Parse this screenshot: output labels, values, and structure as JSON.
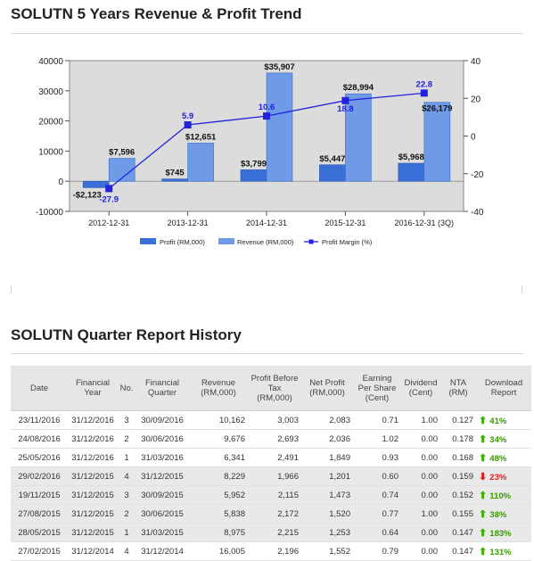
{
  "chart_section": {
    "title": "SOLUTN 5 Years Revenue & Profit Trend"
  },
  "chart_data": {
    "type": "bar",
    "categories": [
      "2012-12-31",
      "2013-12-31",
      "2014-12-31",
      "2015-12-31",
      "2016-12-31 (3Q)"
    ],
    "series": [
      {
        "name": "Profit (RM,000)",
        "type": "bar",
        "values": [
          -2123,
          745,
          3799,
          5447,
          5968
        ],
        "labels": [
          "-$2,123",
          "$745",
          "$3,799",
          "$5,447",
          "$5,968"
        ]
      },
      {
        "name": "Revenue (RM,000)",
        "type": "bar",
        "values": [
          7596,
          12651,
          35907,
          28994,
          26179
        ],
        "labels": [
          "$7,596",
          "$12,651",
          "$35,907",
          "$28,994",
          "$26,179"
        ]
      },
      {
        "name": "Profit Margin (%)",
        "type": "line",
        "axis": "right",
        "values": [
          -27.9,
          5.9,
          10.6,
          18.8,
          22.8
        ],
        "labels": [
          "-27.9",
          "5.9",
          "10.6",
          "18.8",
          "22.8"
        ]
      }
    ],
    "ylim": [
      -10000,
      40000
    ],
    "yticks": [
      "40000",
      "30000",
      "20000",
      "10000",
      "0",
      "-10000"
    ],
    "y2lim": [
      -40,
      40
    ],
    "y2ticks": [
      "40",
      "20",
      "0",
      "-20",
      "-40"
    ],
    "grid": false,
    "legend_position": "bottom",
    "colors": {
      "profit": "#3a6fd8",
      "revenue": "#6f9ae8",
      "margin_line": "#2222dd",
      "margin_text": "#2020dd",
      "plot_bg": "#dcdcdc"
    }
  },
  "report_section": {
    "title": "SOLUTN Quarter Report History",
    "columns": [
      "Date",
      "Financial Year",
      "No.",
      "Financial Quarter",
      "Revenue (RM,000)",
      "Profit Before Tax (RM,000)",
      "Net Profit (RM,000)",
      "Earning Per Share (Cent)",
      "Dividend (Cent)",
      "NTA (RM)",
      "Download Report"
    ],
    "rows": [
      {
        "date": "23/11/2016",
        "fy": "31/12/2016",
        "no": "3",
        "fq": "30/09/2016",
        "revenue": "10,162",
        "pbt": "3,003",
        "np": "2,083",
        "eps": "0.71",
        "div": "1.00",
        "nta": "0.127",
        "change": "41%",
        "dir": "up"
      },
      {
        "date": "24/08/2016",
        "fy": "31/12/2016",
        "no": "2",
        "fq": "30/06/2016",
        "revenue": "9,676",
        "pbt": "2,693",
        "np": "2,036",
        "eps": "1.02",
        "div": "0.00",
        "nta": "0.178",
        "change": "34%",
        "dir": "up"
      },
      {
        "date": "25/05/2016",
        "fy": "31/12/2016",
        "no": "1",
        "fq": "31/03/2016",
        "revenue": "6,341",
        "pbt": "2,491",
        "np": "1,849",
        "eps": "0.93",
        "div": "0.00",
        "nta": "0.168",
        "change": "48%",
        "dir": "up"
      },
      {
        "date": "29/02/2016",
        "fy": "31/12/2015",
        "no": "4",
        "fq": "31/12/2015",
        "revenue": "8,229",
        "pbt": "1,966",
        "np": "1,201",
        "eps": "0.60",
        "div": "0.00",
        "nta": "0.159",
        "change": "23%",
        "dir": "down"
      },
      {
        "date": "19/11/2015",
        "fy": "31/12/2015",
        "no": "3",
        "fq": "30/09/2015",
        "revenue": "5,952",
        "pbt": "2,115",
        "np": "1,473",
        "eps": "0.74",
        "div": "0.00",
        "nta": "0.152",
        "change": "110%",
        "dir": "up"
      },
      {
        "date": "27/08/2015",
        "fy": "31/12/2015",
        "no": "2",
        "fq": "30/06/2015",
        "revenue": "5,838",
        "pbt": "2,172",
        "np": "1,520",
        "eps": "0.77",
        "div": "1.00",
        "nta": "0.155",
        "change": "38%",
        "dir": "up"
      },
      {
        "date": "28/05/2015",
        "fy": "31/12/2015",
        "no": "1",
        "fq": "31/03/2015",
        "revenue": "8,975",
        "pbt": "2,215",
        "np": "1,253",
        "eps": "0.64",
        "div": "0.00",
        "nta": "0.147",
        "change": "183%",
        "dir": "up"
      },
      {
        "date": "27/02/2015",
        "fy": "31/12/2014",
        "no": "4",
        "fq": "31/12/2014",
        "revenue": "16,005",
        "pbt": "2,196",
        "np": "1,552",
        "eps": "0.79",
        "div": "0.00",
        "nta": "0.147",
        "change": "131%",
        "dir": "up"
      }
    ],
    "alt_rows": [
      3,
      4,
      5,
      6
    ]
  }
}
